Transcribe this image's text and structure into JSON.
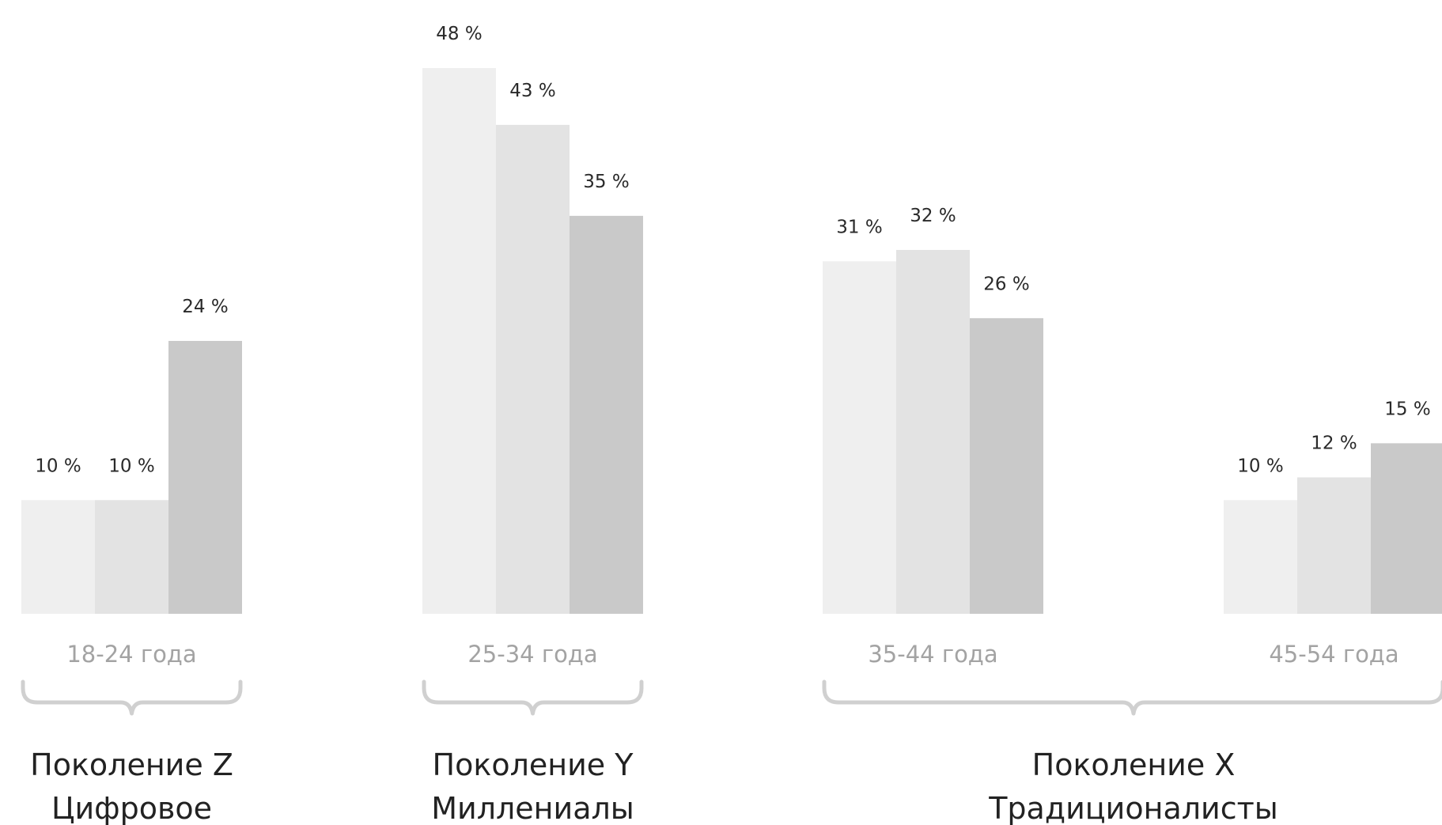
{
  "chart_data": {
    "type": "bar",
    "categories": [
      "18-24 года",
      "25-34 года",
      "35-44 года",
      "45-54 года"
    ],
    "series": [
      {
        "values": [
          10,
          48,
          31,
          10
        ],
        "value_labels": [
          "10 %",
          "48 %",
          "31 %",
          "10 %"
        ],
        "color": "#efefef"
      },
      {
        "values": [
          10,
          43,
          32,
          12
        ],
        "value_labels": [
          "10 %",
          "43 %",
          "32 %",
          "12 %"
        ],
        "color": "#e3e3e3"
      },
      {
        "values": [
          24,
          35,
          26,
          15
        ],
        "value_labels": [
          "24 %",
          "35 %",
          "26 %",
          "15 %"
        ],
        "color": "#c9c9c9"
      }
    ],
    "ylim": [
      0,
      48
    ],
    "generations": [
      {
        "name": "Поколение Z",
        "subtitle": "Цифровое",
        "categories": [
          "18-24 года"
        ]
      },
      {
        "name": "Поколение Y",
        "subtitle": "Миллениалы",
        "categories": [
          "25-34 года"
        ]
      },
      {
        "name": "Поколение X",
        "subtitle": "Традиционалисты",
        "categories": [
          "35-44 года",
          "45-54 года"
        ]
      }
    ],
    "legend": "none",
    "grid": false,
    "colors": {
      "category_label": "#a3a3a3",
      "value_label": "#2a2a2a",
      "generation_label": "#222222",
      "brace": "#d0d0d0"
    }
  }
}
